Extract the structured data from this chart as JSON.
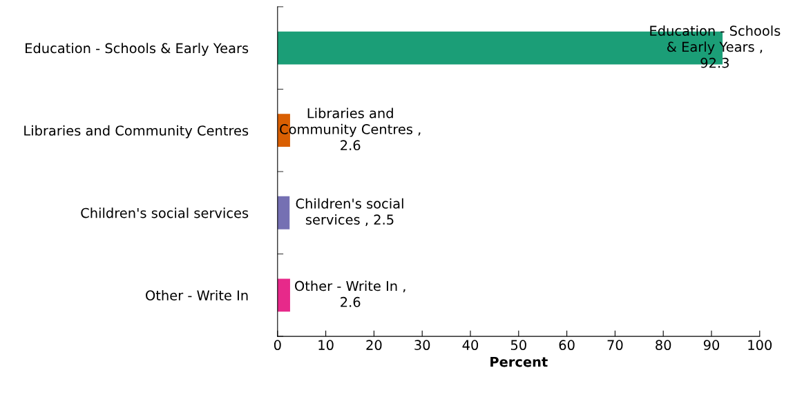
{
  "chart_data": {
    "type": "bar",
    "orientation": "horizontal",
    "xlabel": "Percent",
    "categories": [
      "Education - Schools & Early Years",
      "Libraries and Community Centres",
      "Children's social services",
      "Other - Write In"
    ],
    "values": [
      92.3,
      2.6,
      2.5,
      2.6
    ],
    "colors": [
      "#1b9e77",
      "#d95f02",
      "#7570b3",
      "#e7298a"
    ],
    "value_labels": [
      "Education - Schools & Early Years , 92.3",
      "Libraries and Community Centres , 2.6",
      "Children's social services , 2.5",
      "Other - Write In , 2.6"
    ],
    "xlim": [
      0,
      100
    ],
    "xticks": [
      0,
      10,
      20,
      30,
      40,
      50,
      60,
      70,
      80,
      90,
      100
    ],
    "grid": false,
    "legend": false
  }
}
